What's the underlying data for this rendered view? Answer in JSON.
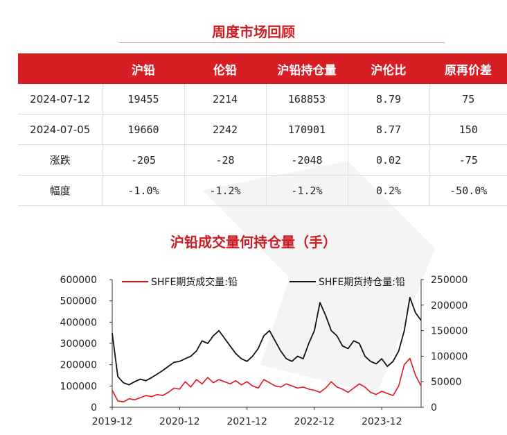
{
  "table_title": "周度市场回顾",
  "table": {
    "headers": [
      "",
      "沪铅",
      "伦铅",
      "沪铅持仓量",
      "沪伦比",
      "原再价差"
    ],
    "rows": [
      [
        "2024-07-12",
        "19455",
        "2214",
        "168853",
        "8.79",
        "75"
      ],
      [
        "2024-07-05",
        "19660",
        "2242",
        "170901",
        "8.77",
        "150"
      ],
      [
        "涨跌",
        "-205",
        "-28",
        "-2048",
        "0.02",
        "-75"
      ],
      [
        "幅度",
        "-1.0%",
        "-1.2%",
        "-1.2%",
        "0.2%",
        "-50.0%"
      ]
    ]
  },
  "chart_title": "沪铅成交量何持仓量（手）",
  "chart_data": {
    "type": "line",
    "title": "沪铅成交量何持仓量（手）",
    "x_tick_labels": [
      "2019-12",
      "2020-12",
      "2021-12",
      "2022-12",
      "2023-12"
    ],
    "x_range": [
      "2019-12",
      "2024-07"
    ],
    "y_left": {
      "ticks": [
        0,
        100000,
        200000,
        300000,
        400000,
        500000,
        600000
      ],
      "range": [
        0,
        600000
      ]
    },
    "y_right": {
      "ticks": [
        0,
        50000,
        100000,
        150000,
        200000,
        250000
      ],
      "range": [
        0,
        250000
      ]
    },
    "legend_position": "top",
    "series": [
      {
        "name": "SHFE期货成交量:铅",
        "axis": "left",
        "color": "#e0141b",
        "points": [
          [
            "2019-12",
            80000
          ],
          [
            "2020-01",
            30000
          ],
          [
            "2020-02",
            25000
          ],
          [
            "2020-03",
            40000
          ],
          [
            "2020-04",
            35000
          ],
          [
            "2020-05",
            45000
          ],
          [
            "2020-06",
            55000
          ],
          [
            "2020-07",
            50000
          ],
          [
            "2020-08",
            60000
          ],
          [
            "2020-09",
            55000
          ],
          [
            "2020-10",
            70000
          ],
          [
            "2020-11",
            90000
          ],
          [
            "2020-12",
            85000
          ],
          [
            "2021-01",
            120000
          ],
          [
            "2021-02",
            95000
          ],
          [
            "2021-03",
            130000
          ],
          [
            "2021-04",
            110000
          ],
          [
            "2021-05",
            140000
          ],
          [
            "2021-06",
            115000
          ],
          [
            "2021-07",
            130000
          ],
          [
            "2021-08",
            120000
          ],
          [
            "2021-09",
            110000
          ],
          [
            "2021-10",
            125000
          ],
          [
            "2021-11",
            105000
          ],
          [
            "2021-12",
            120000
          ],
          [
            "2022-01",
            100000
          ],
          [
            "2022-02",
            90000
          ],
          [
            "2022-03",
            130000
          ],
          [
            "2022-04",
            115000
          ],
          [
            "2022-05",
            100000
          ],
          [
            "2022-06",
            95000
          ],
          [
            "2022-07",
            110000
          ],
          [
            "2022-08",
            100000
          ],
          [
            "2022-09",
            90000
          ],
          [
            "2022-10",
            95000
          ],
          [
            "2022-11",
            85000
          ],
          [
            "2022-12",
            80000
          ],
          [
            "2023-01",
            70000
          ],
          [
            "2023-02",
            90000
          ],
          [
            "2023-03",
            120000
          ],
          [
            "2023-04",
            95000
          ],
          [
            "2023-05",
            85000
          ],
          [
            "2023-06",
            70000
          ],
          [
            "2023-07",
            90000
          ],
          [
            "2023-08",
            110000
          ],
          [
            "2023-09",
            95000
          ],
          [
            "2023-10",
            70000
          ],
          [
            "2023-11",
            60000
          ],
          [
            "2023-12",
            75000
          ],
          [
            "2024-01",
            65000
          ],
          [
            "2024-02",
            55000
          ],
          [
            "2024-03",
            100000
          ],
          [
            "2024-04",
            200000
          ],
          [
            "2024-05",
            230000
          ],
          [
            "2024-06",
            150000
          ],
          [
            "2024-07",
            100000
          ]
        ]
      },
      {
        "name": "SHFE期货持仓量:铅",
        "axis": "right",
        "color": "#111111",
        "points": [
          [
            "2019-12",
            145000
          ],
          [
            "2020-01",
            60000
          ],
          [
            "2020-02",
            48000
          ],
          [
            "2020-03",
            44000
          ],
          [
            "2020-04",
            50000
          ],
          [
            "2020-05",
            55000
          ],
          [
            "2020-06",
            52000
          ],
          [
            "2020-07",
            58000
          ],
          [
            "2020-08",
            65000
          ],
          [
            "2020-09",
            72000
          ],
          [
            "2020-10",
            80000
          ],
          [
            "2020-11",
            88000
          ],
          [
            "2020-12",
            90000
          ],
          [
            "2021-01",
            95000
          ],
          [
            "2021-02",
            100000
          ],
          [
            "2021-03",
            110000
          ],
          [
            "2021-04",
            130000
          ],
          [
            "2021-05",
            125000
          ],
          [
            "2021-06",
            140000
          ],
          [
            "2021-07",
            150000
          ],
          [
            "2021-08",
            135000
          ],
          [
            "2021-09",
            120000
          ],
          [
            "2021-10",
            105000
          ],
          [
            "2021-11",
            95000
          ],
          [
            "2021-12",
            90000
          ],
          [
            "2022-01",
            100000
          ],
          [
            "2022-02",
            115000
          ],
          [
            "2022-03",
            140000
          ],
          [
            "2022-04",
            150000
          ],
          [
            "2022-05",
            130000
          ],
          [
            "2022-06",
            110000
          ],
          [
            "2022-07",
            95000
          ],
          [
            "2022-08",
            90000
          ],
          [
            "2022-09",
            100000
          ],
          [
            "2022-10",
            95000
          ],
          [
            "2022-11",
            125000
          ],
          [
            "2022-12",
            150000
          ],
          [
            "2023-01",
            205000
          ],
          [
            "2023-02",
            180000
          ],
          [
            "2023-03",
            150000
          ],
          [
            "2023-04",
            140000
          ],
          [
            "2023-05",
            120000
          ],
          [
            "2023-06",
            115000
          ],
          [
            "2023-07",
            130000
          ],
          [
            "2023-08",
            125000
          ],
          [
            "2023-09",
            100000
          ],
          [
            "2023-10",
            90000
          ],
          [
            "2023-11",
            85000
          ],
          [
            "2023-12",
            95000
          ],
          [
            "2024-01",
            80000
          ],
          [
            "2024-02",
            90000
          ],
          [
            "2024-03",
            110000
          ],
          [
            "2024-04",
            150000
          ],
          [
            "2024-05",
            215000
          ],
          [
            "2024-06",
            185000
          ],
          [
            "2024-07",
            170000
          ]
        ]
      }
    ]
  }
}
